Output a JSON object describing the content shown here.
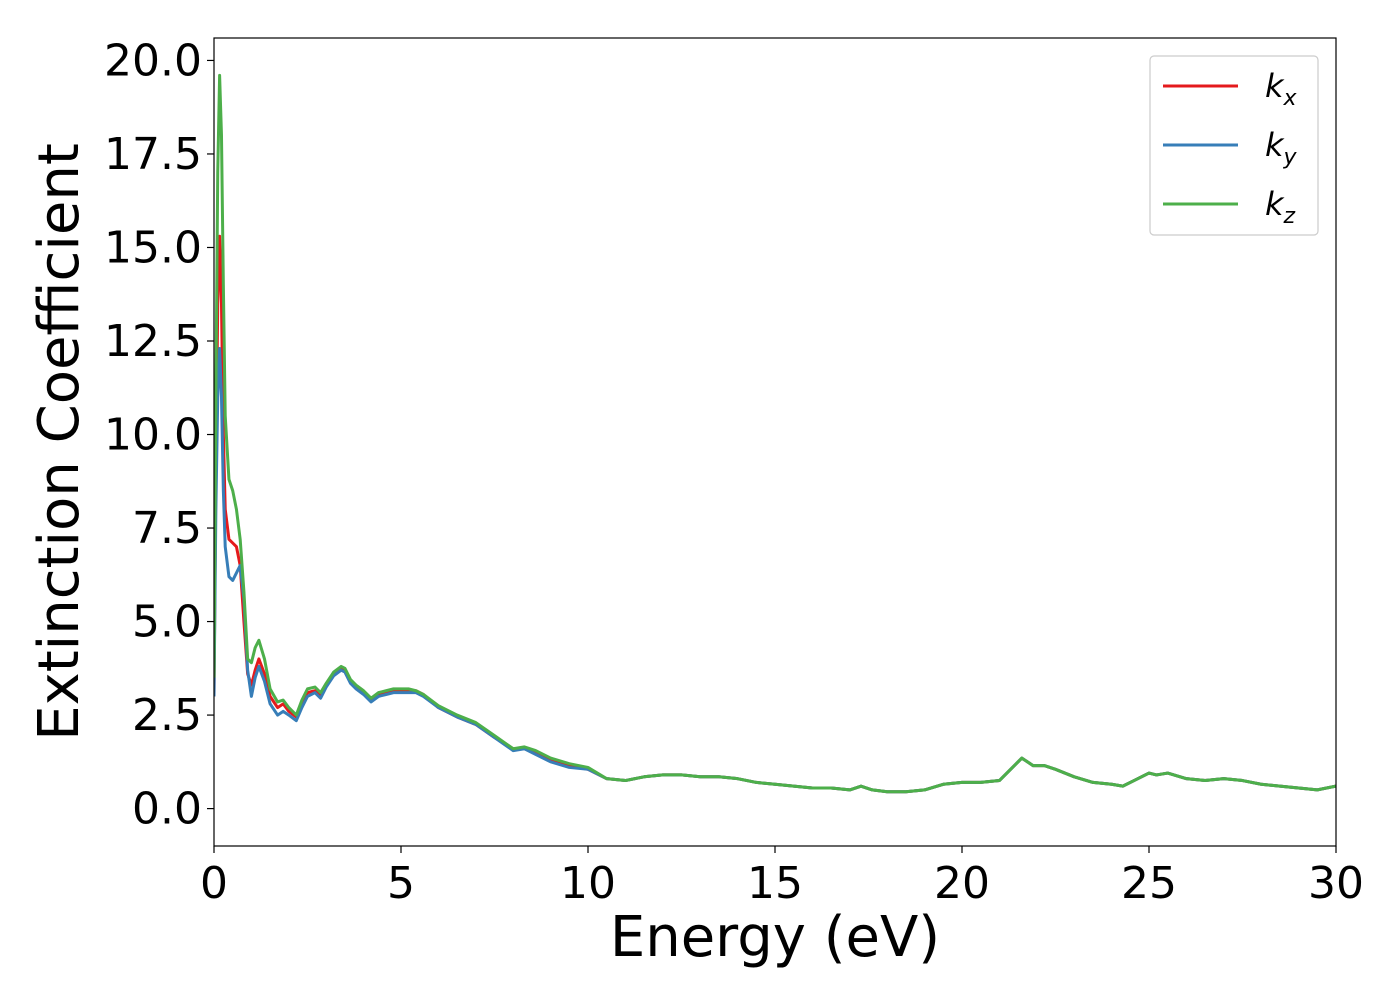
{
  "chart_data": {
    "type": "line",
    "title": "",
    "xlabel": "Energy (eV)",
    "ylabel": "Extinction Coefficient",
    "xlim": [
      0,
      30
    ],
    "ylim": [
      -1.0,
      20.6
    ],
    "xticks": [
      0,
      5,
      10,
      15,
      20,
      25,
      30
    ],
    "xtick_labels": [
      "0",
      "5",
      "10",
      "15",
      "20",
      "25",
      "30"
    ],
    "yticks": [
      0,
      2.5,
      5,
      7.5,
      10,
      12.5,
      15,
      17.5,
      20
    ],
    "ytick_labels": [
      "0.0",
      "2.5",
      "5.0",
      "7.5",
      "10.0",
      "12.5",
      "15.0",
      "17.5",
      "20.0"
    ],
    "grid": false,
    "legend_position": "top-right",
    "series": [
      {
        "name": "kx",
        "name_main": "k",
        "name_sub": "x",
        "color": "#e41a1c",
        "x": [
          0,
          0.05,
          0.1,
          0.15,
          0.2,
          0.25,
          0.3,
          0.4,
          0.5,
          0.6,
          0.7,
          0.8,
          0.9,
          1.0,
          1.1,
          1.2,
          1.35,
          1.5,
          1.7,
          1.85,
          2.0,
          2.2,
          2.35,
          2.5,
          2.7,
          2.85,
          3.0,
          3.2,
          3.4,
          3.5,
          3.65,
          3.8,
          4.0,
          4.2,
          4.4,
          4.6,
          4.8,
          5.0,
          5.2,
          5.4,
          5.6,
          6.0,
          6.5,
          7.0,
          7.5,
          8.0,
          8.3,
          8.6,
          9.0,
          9.5,
          10.0,
          10.5,
          11.0,
          11.5,
          12.0,
          12.5,
          13.0,
          13.5,
          14.0,
          14.5,
          15.0,
          15.5,
          16.0,
          16.5,
          17.0,
          17.3,
          17.6,
          18.0,
          18.5,
          19.0,
          19.5,
          20.0,
          20.5,
          21.0,
          21.3,
          21.6,
          21.9,
          22.2,
          22.5,
          23.0,
          23.5,
          24.0,
          24.3,
          24.6,
          25.0,
          25.2,
          25.5,
          26.0,
          26.5,
          27.0,
          27.5,
          28.0,
          28.5,
          29.0,
          29.5,
          30.0
        ],
        "values": [
          3.0,
          9.0,
          13.5,
          15.3,
          13.5,
          10.0,
          8.0,
          7.2,
          7.1,
          7.0,
          6.5,
          5.0,
          3.6,
          3.3,
          3.7,
          4.0,
          3.6,
          3.0,
          2.7,
          2.8,
          2.6,
          2.45,
          2.8,
          3.1,
          3.15,
          3.0,
          3.3,
          3.6,
          3.75,
          3.7,
          3.4,
          3.25,
          3.1,
          2.9,
          3.05,
          3.1,
          3.15,
          3.15,
          3.15,
          3.15,
          3.05,
          2.7,
          2.45,
          2.25,
          1.9,
          1.6,
          1.6,
          1.5,
          1.3,
          1.15,
          1.05,
          0.8,
          0.75,
          0.85,
          0.9,
          0.9,
          0.85,
          0.85,
          0.8,
          0.7,
          0.65,
          0.6,
          0.55,
          0.55,
          0.5,
          0.6,
          0.5,
          0.45,
          0.45,
          0.5,
          0.65,
          0.7,
          0.7,
          0.75,
          1.05,
          1.35,
          1.15,
          1.15,
          1.05,
          0.85,
          0.7,
          0.65,
          0.6,
          0.75,
          0.95,
          0.9,
          0.95,
          0.8,
          0.75,
          0.8,
          0.75,
          0.65,
          0.6,
          0.55,
          0.5,
          0.6
        ]
      },
      {
        "name": "ky",
        "name_main": "k",
        "name_sub": "y",
        "color": "#377eb8",
        "x": [
          0,
          0.05,
          0.1,
          0.15,
          0.2,
          0.25,
          0.3,
          0.4,
          0.5,
          0.6,
          0.7,
          0.8,
          0.9,
          1.0,
          1.1,
          1.2,
          1.35,
          1.5,
          1.7,
          1.85,
          2.0,
          2.2,
          2.35,
          2.5,
          2.7,
          2.85,
          3.0,
          3.2,
          3.4,
          3.5,
          3.65,
          3.8,
          4.0,
          4.2,
          4.4,
          4.6,
          4.8,
          5.0,
          5.2,
          5.4,
          5.6,
          6.0,
          6.5,
          7.0,
          7.5,
          8.0,
          8.3,
          8.6,
          9.0,
          9.5,
          10.0,
          10.5,
          11.0,
          11.5,
          12.0,
          12.5,
          13.0,
          13.5,
          14.0,
          14.5,
          15.0,
          15.5,
          16.0,
          16.5,
          17.0,
          17.3,
          17.6,
          18.0,
          18.5,
          19.0,
          19.5,
          20.0,
          20.5,
          21.0,
          21.3,
          21.6,
          21.9,
          22.2,
          22.5,
          23.0,
          23.5,
          24.0,
          24.3,
          24.6,
          25.0,
          25.2,
          25.5,
          26.0,
          26.5,
          27.0,
          27.5,
          28.0,
          28.5,
          29.0,
          29.5,
          30.0
        ],
        "values": [
          3.0,
          8.0,
          11.0,
          12.3,
          11.0,
          8.5,
          7.0,
          6.2,
          6.1,
          6.3,
          6.5,
          5.6,
          3.7,
          3.0,
          3.5,
          3.8,
          3.4,
          2.8,
          2.5,
          2.6,
          2.5,
          2.35,
          2.7,
          3.0,
          3.1,
          2.95,
          3.25,
          3.55,
          3.7,
          3.65,
          3.35,
          3.2,
          3.05,
          2.85,
          3.0,
          3.05,
          3.1,
          3.1,
          3.1,
          3.1,
          3.0,
          2.7,
          2.45,
          2.25,
          1.9,
          1.55,
          1.6,
          1.45,
          1.25,
          1.1,
          1.05,
          0.8,
          0.75,
          0.85,
          0.9,
          0.9,
          0.85,
          0.85,
          0.8,
          0.7,
          0.65,
          0.6,
          0.55,
          0.55,
          0.5,
          0.6,
          0.5,
          0.45,
          0.45,
          0.5,
          0.65,
          0.7,
          0.7,
          0.75,
          1.05,
          1.35,
          1.15,
          1.15,
          1.05,
          0.85,
          0.7,
          0.65,
          0.6,
          0.75,
          0.95,
          0.9,
          0.95,
          0.8,
          0.75,
          0.8,
          0.75,
          0.65,
          0.6,
          0.55,
          0.5,
          0.6
        ]
      },
      {
        "name": "kz",
        "name_main": "k",
        "name_sub": "z",
        "color": "#4daf4a",
        "x": [
          0,
          0.05,
          0.1,
          0.15,
          0.2,
          0.25,
          0.3,
          0.4,
          0.5,
          0.6,
          0.7,
          0.8,
          0.9,
          1.0,
          1.1,
          1.2,
          1.35,
          1.5,
          1.7,
          1.85,
          2.0,
          2.2,
          2.35,
          2.5,
          2.7,
          2.85,
          3.0,
          3.2,
          3.4,
          3.5,
          3.65,
          3.8,
          4.0,
          4.2,
          4.4,
          4.6,
          4.8,
          5.0,
          5.2,
          5.4,
          5.6,
          6.0,
          6.5,
          7.0,
          7.5,
          8.0,
          8.3,
          8.6,
          9.0,
          9.5,
          10.0,
          10.5,
          11.0,
          11.5,
          12.0,
          12.5,
          13.0,
          13.5,
          14.0,
          14.5,
          15.0,
          15.5,
          16.0,
          16.5,
          17.0,
          17.3,
          17.6,
          18.0,
          18.5,
          19.0,
          19.5,
          20.0,
          20.5,
          21.0,
          21.3,
          21.6,
          21.9,
          22.2,
          22.5,
          23.0,
          23.5,
          24.0,
          24.3,
          24.6,
          25.0,
          25.2,
          25.5,
          26.0,
          26.5,
          27.0,
          27.5,
          28.0,
          28.5,
          29.0,
          29.5,
          30.0
        ],
        "values": [
          3.5,
          11.0,
          17.0,
          19.6,
          18.0,
          14.0,
          10.5,
          8.8,
          8.5,
          8.0,
          7.2,
          5.8,
          4.0,
          3.9,
          4.3,
          4.5,
          4.0,
          3.2,
          2.85,
          2.9,
          2.7,
          2.5,
          2.9,
          3.2,
          3.25,
          3.1,
          3.35,
          3.65,
          3.8,
          3.75,
          3.45,
          3.3,
          3.15,
          2.95,
          3.1,
          3.15,
          3.2,
          3.2,
          3.2,
          3.15,
          3.05,
          2.75,
          2.5,
          2.3,
          1.95,
          1.6,
          1.65,
          1.55,
          1.35,
          1.2,
          1.1,
          0.8,
          0.75,
          0.85,
          0.9,
          0.9,
          0.85,
          0.85,
          0.8,
          0.7,
          0.65,
          0.6,
          0.55,
          0.55,
          0.5,
          0.6,
          0.5,
          0.45,
          0.45,
          0.5,
          0.65,
          0.7,
          0.7,
          0.75,
          1.05,
          1.35,
          1.15,
          1.15,
          1.05,
          0.85,
          0.7,
          0.65,
          0.6,
          0.75,
          0.95,
          0.9,
          0.95,
          0.8,
          0.75,
          0.8,
          0.75,
          0.65,
          0.6,
          0.55,
          0.5,
          0.6
        ]
      }
    ]
  }
}
